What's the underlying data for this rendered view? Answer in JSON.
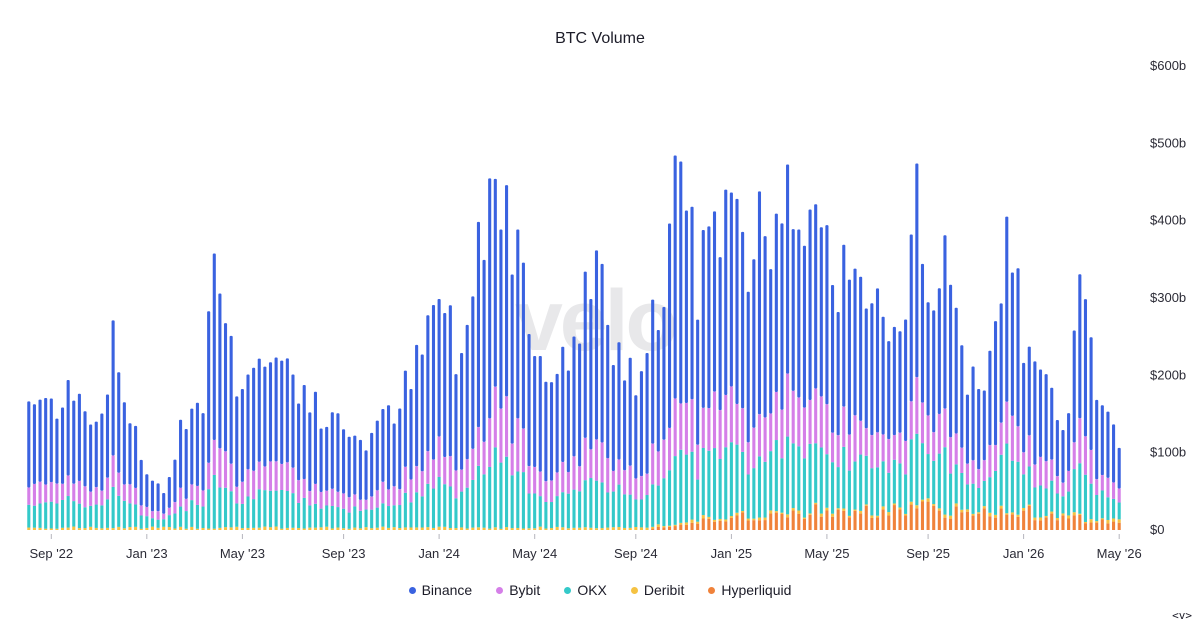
{
  "chart_data": {
    "type": "bar",
    "stacked": true,
    "title": "BTC Volume",
    "watermark": "velo",
    "y_axis": {
      "position": "right",
      "ylim": [
        0,
        600
      ],
      "ticks": [
        0,
        100,
        200,
        300,
        400,
        500,
        600
      ],
      "tick_labels": [
        "$0",
        "$100b",
        "$200b",
        "$300b",
        "$400b",
        "$500b",
        "$600b"
      ]
    },
    "x_axis": {
      "tick_labels": [
        "Sep '22",
        "Jan '23",
        "May '23",
        "Sep '23",
        "Jan '24",
        "May '24",
        "Sep '24",
        "Jan '25",
        "May '25",
        "Sep '25",
        "Jan '26",
        "May '26"
      ],
      "tick_week_index": [
        4,
        21,
        38,
        56,
        73,
        90,
        108,
        125,
        142,
        160,
        177,
        194
      ]
    },
    "legend_position": "bottom-center",
    "series": [
      {
        "name": "Hyperliquid",
        "color": "#f0823a"
      },
      {
        "name": "Deribit",
        "color": "#f5c242"
      },
      {
        "name": "OKX",
        "color": "#34c9c9"
      },
      {
        "name": "Bybit",
        "color": "#d57fe8"
      },
      {
        "name": "Binance",
        "color": "#3a62e0"
      }
    ],
    "totals_anchor_weeks": [
      [
        0,
        172
      ],
      [
        5,
        165
      ],
      [
        7,
        205
      ],
      [
        12,
        140
      ],
      [
        15,
        245
      ],
      [
        20,
        92
      ],
      [
        24,
        50
      ],
      [
        27,
        140
      ],
      [
        31,
        180
      ],
      [
        33,
        355
      ],
      [
        37,
        205
      ],
      [
        45,
        230
      ],
      [
        52,
        150
      ],
      [
        60,
        120
      ],
      [
        65,
        160
      ],
      [
        70,
        230
      ],
      [
        73,
        320
      ],
      [
        77,
        215
      ],
      [
        80,
        400
      ],
      [
        83,
        478
      ],
      [
        85,
        415
      ],
      [
        87,
        385
      ],
      [
        91,
        230
      ],
      [
        96,
        215
      ],
      [
        101,
        385
      ],
      [
        104,
        225
      ],
      [
        108,
        200
      ],
      [
        112,
        290
      ],
      [
        114,
        390
      ],
      [
        116,
        475
      ],
      [
        119,
        330
      ],
      [
        121,
        450
      ],
      [
        126,
        400
      ],
      [
        128,
        330
      ],
      [
        130,
        475
      ],
      [
        132,
        400
      ],
      [
        135,
        465
      ],
      [
        138,
        330
      ],
      [
        141,
        455
      ],
      [
        144,
        320
      ],
      [
        147,
        375
      ],
      [
        150,
        310
      ],
      [
        153,
        235
      ],
      [
        156,
        300
      ],
      [
        158,
        440
      ],
      [
        161,
        300
      ],
      [
        164,
        370
      ],
      [
        167,
        210
      ],
      [
        170,
        200
      ],
      [
        173,
        270
      ],
      [
        174,
        415
      ],
      [
        177,
        250
      ],
      [
        182,
        170
      ],
      [
        185,
        140
      ],
      [
        187,
        340
      ],
      [
        190,
        200
      ],
      [
        193,
        125
      ],
      [
        194,
        95
      ]
    ],
    "weeks": 195,
    "composition": {
      "hyperliquid_start_week": 110,
      "hyperliquid_peak": [
        [
          110,
          0
        ],
        [
          116,
          10
        ],
        [
          125,
          15
        ],
        [
          140,
          25
        ],
        [
          152,
          22
        ],
        [
          160,
          30
        ],
        [
          168,
          18
        ],
        [
          176,
          28
        ],
        [
          180,
          18
        ],
        [
          194,
          10
        ]
      ],
      "deribit_base": 3,
      "okx_share": 0.2,
      "bybit_share": 0.15
    }
  },
  "corner_mark": "<v>"
}
